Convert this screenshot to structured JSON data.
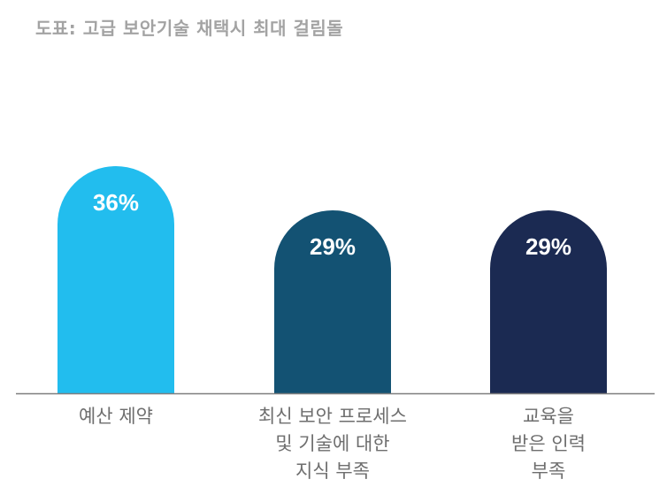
{
  "title": "도표: 고급 보안기술 채택시 최대 걸림돌",
  "colors": {
    "axis": "#7f7f7f",
    "label": "#6e6e6e",
    "title": "#a3a3a3"
  },
  "chart_data": {
    "type": "bar",
    "title": "도표: 고급 보안기술 채택시 최대 걸림돌",
    "categories": [
      [
        "예산 제약"
      ],
      [
        "최신 보안 프로세스",
        "및 기술에 대한",
        "지식 부족"
      ],
      [
        "교육을",
        "받은 인력",
        "부족"
      ]
    ],
    "values": [
      36,
      29,
      29
    ],
    "value_labels": [
      "36%",
      "29%",
      "29%"
    ],
    "bar_colors": [
      "#22bdee",
      "#135273",
      "#1b2a52"
    ],
    "ylim": [
      0,
      45
    ],
    "grid": false
  }
}
